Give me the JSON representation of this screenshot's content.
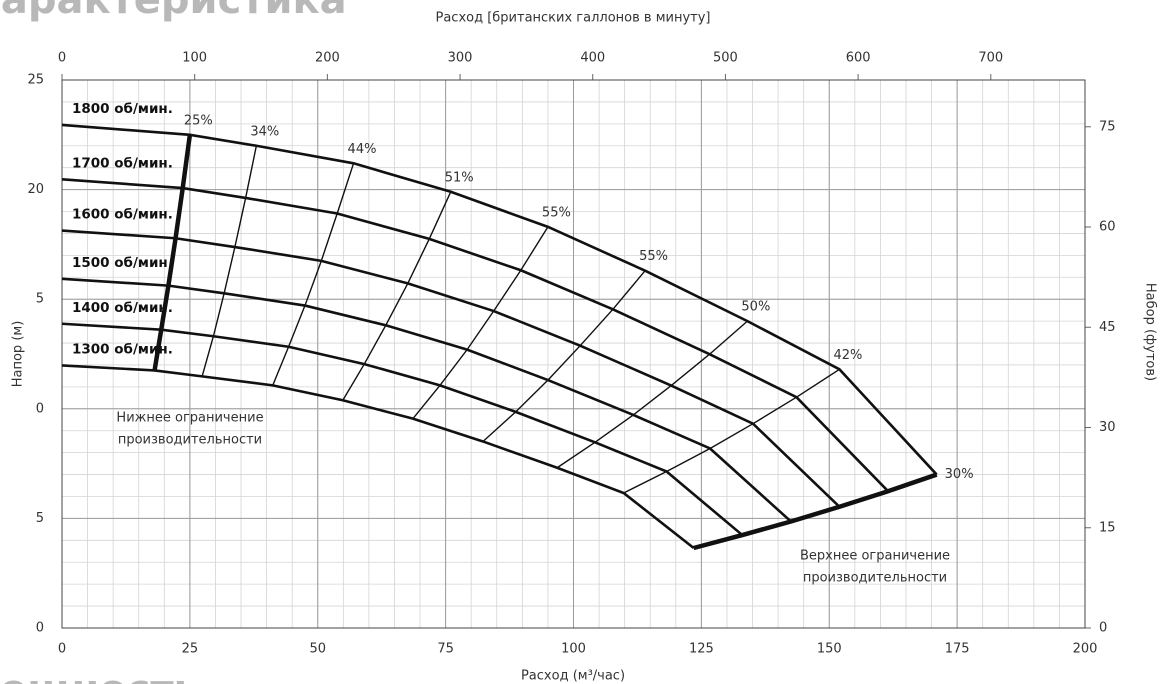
{
  "header_fragment": "Характеристика",
  "footer_fragment": "Мощность",
  "chart_data": {
    "type": "line",
    "x_label": "Расход (м³/час)",
    "x2_label": "Расход [британских галлонов в минуту]",
    "y_label": "Напор (м)",
    "y2_label": "Набор (футов)",
    "xlim": [
      0,
      200
    ],
    "xticks": [
      0,
      25,
      50,
      75,
      100,
      125,
      150,
      175,
      200
    ],
    "x2lim": [
      0,
      771
    ],
    "x2ticks": [
      0,
      100,
      200,
      300,
      400,
      500,
      600,
      700
    ],
    "ylim": [
      0,
      25
    ],
    "yticks": [
      0,
      {
        "value": 5,
        "label": "5"
      },
      {
        "value": 10,
        "label": "0"
      },
      {
        "value": 15,
        "label": "5"
      },
      20,
      25
    ],
    "y2lim": [
      0,
      82
    ],
    "y2ticks": [
      0,
      15,
      30,
      45,
      60,
      75
    ],
    "grid": true,
    "minor_grid": {
      "x": 5,
      "y": 1
    },
    "series": [
      {
        "name": "1800 об/мин.",
        "color": "#111111",
        "x": [
          0,
          25,
          38,
          57,
          76,
          95,
          114,
          134,
          152,
          171
        ],
        "values": [
          22.95,
          22.5,
          22.0,
          21.2,
          19.9,
          18.3,
          16.3,
          14.0,
          11.8,
          7.0
        ]
      },
      {
        "name": "1700 об/мин.",
        "color": "#111111",
        "x": [
          0,
          23.6,
          35.9,
          53.8,
          71.8,
          89.7,
          107.7,
          126.6,
          143.6,
          161.5
        ],
        "values": [
          20.47,
          20.07,
          19.62,
          18.91,
          17.75,
          16.32,
          14.54,
          12.49,
          10.53,
          6.24
        ]
      },
      {
        "name": "1600 об/мин.",
        "color": "#111111",
        "x": [
          0,
          22.2,
          33.8,
          50.7,
          67.6,
          84.4,
          101.3,
          119.1,
          135.1,
          152.0
        ],
        "values": [
          18.13,
          17.78,
          17.38,
          16.75,
          15.72,
          14.46,
          12.88,
          11.06,
          9.32,
          5.53
        ]
      },
      {
        "name": "1500 об/мин",
        "color": "#111111",
        "x": [
          0,
          20.8,
          31.7,
          47.5,
          63.3,
          79.2,
          95.0,
          111.7,
          126.7,
          142.5
        ],
        "values": [
          15.93,
          15.62,
          15.27,
          14.71,
          13.81,
          12.7,
          11.31,
          9.72,
          8.19,
          4.86
        ]
      },
      {
        "name": "1400 об/мин.",
        "color": "#111111",
        "x": [
          0,
          19.4,
          29.6,
          44.3,
          59.1,
          73.9,
          88.7,
          104.2,
          118.2,
          133.0
        ],
        "values": [
          13.88,
          13.61,
          13.31,
          12.83,
          12.04,
          11.07,
          9.86,
          8.47,
          7.14,
          4.24
        ]
      },
      {
        "name": "1300 об/мин.",
        "color": "#111111",
        "x": [
          0,
          18.1,
          27.4,
          41.2,
          54.9,
          68.6,
          82.3,
          96.8,
          109.8,
          123.5
        ],
        "values": [
          11.98,
          11.75,
          11.48,
          11.07,
          10.39,
          9.55,
          8.51,
          7.31,
          6.16,
          3.65
        ]
      }
    ],
    "efficiency_labels": [
      null,
      "25%",
      "34%",
      "44%",
      "51%",
      "55%",
      "55%",
      "50%",
      "42%",
      "30%"
    ],
    "annotations": [
      {
        "lines": [
          "Нижнее ограничение",
          "производительности"
        ]
      },
      {
        "lines": [
          "Верхнее ограничение",
          "производительности"
        ]
      }
    ]
  }
}
